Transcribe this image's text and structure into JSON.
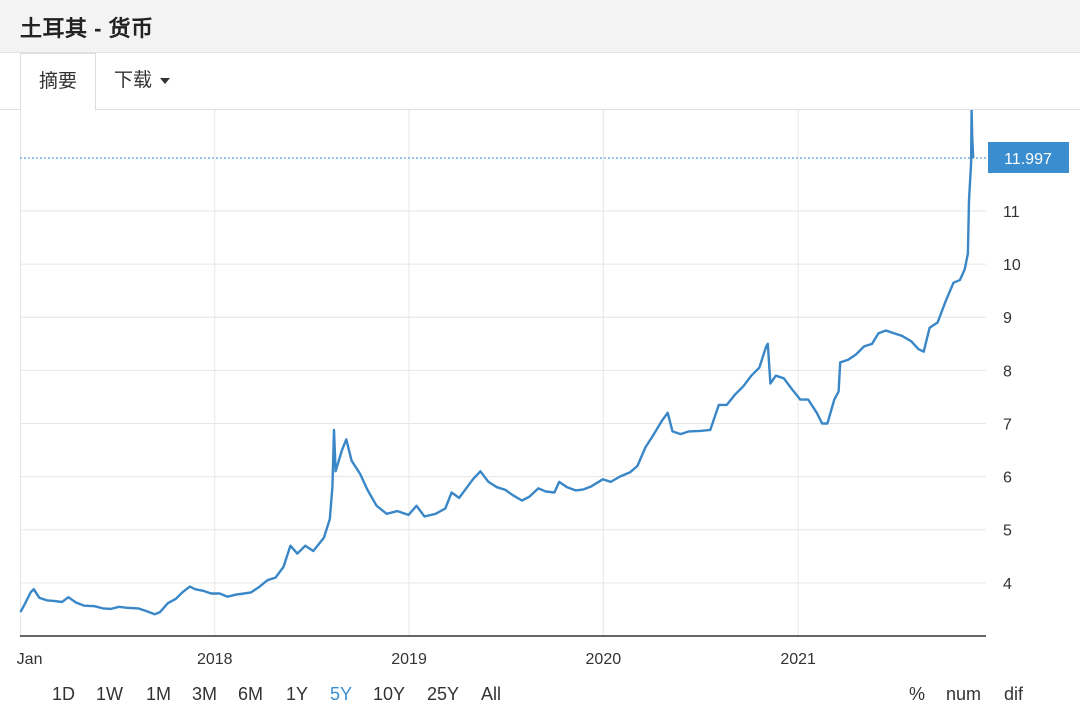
{
  "header": {
    "title": "土耳其 - 货币"
  },
  "tabs": [
    {
      "label": "摘要"
    },
    {
      "label": "下载"
    }
  ],
  "ranges": [
    "1D",
    "1W",
    "1M",
    "3M",
    "6M",
    "1Y",
    "5Y",
    "10Y",
    "25Y",
    "All"
  ],
  "active_range": "5Y",
  "modes": [
    "%",
    "num",
    "dif"
  ],
  "colors": {
    "line": "#3a87c8",
    "accent": "#3a8ed0",
    "grid": "#e6e6e6"
  },
  "chart_data": {
    "type": "line",
    "title": "",
    "xlabel": "",
    "ylabel": "",
    "x_ticks": [
      "Jan",
      "2018",
      "2019",
      "2020",
      "2021"
    ],
    "y_ticks": [
      4,
      5,
      6,
      7,
      8,
      9,
      10,
      11
    ],
    "ylim": [
      3.0,
      12.9
    ],
    "xlim": [
      "2016-12-31",
      "2021-12-20"
    ],
    "last_value_label": "11.997",
    "last_value": 11.997,
    "grid": true,
    "series": [
      {
        "points": [
          [
            "2017-01-01",
            3.45
          ],
          [
            "2017-01-10",
            3.62
          ],
          [
            "2017-01-20",
            3.82
          ],
          [
            "2017-01-26",
            3.88
          ],
          [
            "2017-02-05",
            3.72
          ],
          [
            "2017-02-20",
            3.67
          ],
          [
            "2017-03-05",
            3.66
          ],
          [
            "2017-03-20",
            3.64
          ],
          [
            "2017-04-01",
            3.73
          ],
          [
            "2017-04-15",
            3.63
          ],
          [
            "2017-05-01",
            3.57
          ],
          [
            "2017-05-20",
            3.56
          ],
          [
            "2017-06-05",
            3.52
          ],
          [
            "2017-06-20",
            3.51
          ],
          [
            "2017-07-05",
            3.55
          ],
          [
            "2017-07-20",
            3.53
          ],
          [
            "2017-08-10",
            3.52
          ],
          [
            "2017-08-25",
            3.47
          ],
          [
            "2017-09-10",
            3.41
          ],
          [
            "2017-09-20",
            3.45
          ],
          [
            "2017-10-05",
            3.62
          ],
          [
            "2017-10-20",
            3.7
          ],
          [
            "2017-11-01",
            3.82
          ],
          [
            "2017-11-15",
            3.93
          ],
          [
            "2017-11-25",
            3.88
          ],
          [
            "2017-12-10",
            3.85
          ],
          [
            "2017-12-25",
            3.8
          ],
          [
            "2018-01-10",
            3.8
          ],
          [
            "2018-01-25",
            3.74
          ],
          [
            "2018-02-10",
            3.78
          ],
          [
            "2018-02-25",
            3.8
          ],
          [
            "2018-03-10",
            3.82
          ],
          [
            "2018-03-25",
            3.92
          ],
          [
            "2018-04-10",
            4.05
          ],
          [
            "2018-04-25",
            4.1
          ],
          [
            "2018-05-10",
            4.3
          ],
          [
            "2018-05-23",
            4.7
          ],
          [
            "2018-06-05",
            4.55
          ],
          [
            "2018-06-20",
            4.7
          ],
          [
            "2018-07-05",
            4.6
          ],
          [
            "2018-07-25",
            4.85
          ],
          [
            "2018-08-05",
            5.2
          ],
          [
            "2018-08-10",
            5.8
          ],
          [
            "2018-08-13",
            6.88
          ],
          [
            "2018-08-16",
            6.1
          ],
          [
            "2018-08-28",
            6.5
          ],
          [
            "2018-09-05",
            6.7
          ],
          [
            "2018-09-15",
            6.3
          ],
          [
            "2018-10-01",
            6.05
          ],
          [
            "2018-10-15",
            5.75
          ],
          [
            "2018-11-01",
            5.45
          ],
          [
            "2018-11-20",
            5.3
          ],
          [
            "2018-12-10",
            5.35
          ],
          [
            "2018-12-31",
            5.28
          ],
          [
            "2019-01-15",
            5.45
          ],
          [
            "2019-01-30",
            5.25
          ],
          [
            "2019-02-20",
            5.3
          ],
          [
            "2019-03-10",
            5.4
          ],
          [
            "2019-03-22",
            5.7
          ],
          [
            "2019-04-05",
            5.6
          ],
          [
            "2019-04-20",
            5.8
          ],
          [
            "2019-05-01",
            5.95
          ],
          [
            "2019-05-15",
            6.1
          ],
          [
            "2019-05-30",
            5.9
          ],
          [
            "2019-06-15",
            5.8
          ],
          [
            "2019-07-01",
            5.75
          ],
          [
            "2019-07-15",
            5.65
          ],
          [
            "2019-08-01",
            5.55
          ],
          [
            "2019-08-15",
            5.62
          ],
          [
            "2019-09-01",
            5.78
          ],
          [
            "2019-09-15",
            5.72
          ],
          [
            "2019-10-01",
            5.7
          ],
          [
            "2019-10-10",
            5.9
          ],
          [
            "2019-10-25",
            5.8
          ],
          [
            "2019-11-10",
            5.74
          ],
          [
            "2019-11-25",
            5.76
          ],
          [
            "2019-12-10",
            5.82
          ],
          [
            "2019-12-31",
            5.95
          ],
          [
            "2020-01-15",
            5.9
          ],
          [
            "2020-02-01",
            6.0
          ],
          [
            "2020-02-20",
            6.08
          ],
          [
            "2020-03-05",
            6.2
          ],
          [
            "2020-03-20",
            6.55
          ],
          [
            "2020-04-05",
            6.8
          ],
          [
            "2020-04-20",
            7.05
          ],
          [
            "2020-05-01",
            7.2
          ],
          [
            "2020-05-10",
            6.85
          ],
          [
            "2020-05-25",
            6.8
          ],
          [
            "2020-06-10",
            6.85
          ],
          [
            "2020-07-01",
            6.86
          ],
          [
            "2020-07-20",
            6.88
          ],
          [
            "2020-08-05",
            7.35
          ],
          [
            "2020-08-20",
            7.35
          ],
          [
            "2020-09-05",
            7.55
          ],
          [
            "2020-09-20",
            7.7
          ],
          [
            "2020-10-05",
            7.9
          ],
          [
            "2020-10-20",
            8.05
          ],
          [
            "2020-11-02",
            8.45
          ],
          [
            "2020-11-05",
            8.5
          ],
          [
            "2020-11-10",
            7.75
          ],
          [
            "2020-11-20",
            7.9
          ],
          [
            "2020-12-05",
            7.85
          ],
          [
            "2020-12-20",
            7.65
          ],
          [
            "2021-01-05",
            7.45
          ],
          [
            "2021-01-20",
            7.45
          ],
          [
            "2021-02-05",
            7.2
          ],
          [
            "2021-02-15",
            7.0
          ],
          [
            "2021-02-25",
            7.0
          ],
          [
            "2021-03-10",
            7.45
          ],
          [
            "2021-03-18",
            7.6
          ],
          [
            "2021-03-21",
            8.15
          ],
          [
            "2021-04-05",
            8.2
          ],
          [
            "2021-04-20",
            8.3
          ],
          [
            "2021-05-05",
            8.45
          ],
          [
            "2021-05-20",
            8.5
          ],
          [
            "2021-06-01",
            8.7
          ],
          [
            "2021-06-15",
            8.75
          ],
          [
            "2021-06-30",
            8.7
          ],
          [
            "2021-07-15",
            8.65
          ],
          [
            "2021-08-01",
            8.55
          ],
          [
            "2021-08-15",
            8.4
          ],
          [
            "2021-08-25",
            8.35
          ],
          [
            "2021-09-05",
            8.8
          ],
          [
            "2021-09-20",
            8.9
          ],
          [
            "2021-10-05",
            9.3
          ],
          [
            "2021-10-20",
            9.65
          ],
          [
            "2021-11-01",
            9.7
          ],
          [
            "2021-11-10",
            9.9
          ],
          [
            "2021-11-16",
            10.2
          ],
          [
            "2021-11-18",
            11.2
          ],
          [
            "2021-11-22",
            11.9
          ],
          [
            "2021-11-23",
            12.9
          ],
          [
            "2021-11-24",
            12.4
          ],
          [
            "2021-11-26",
            11.997
          ]
        ]
      }
    ]
  }
}
